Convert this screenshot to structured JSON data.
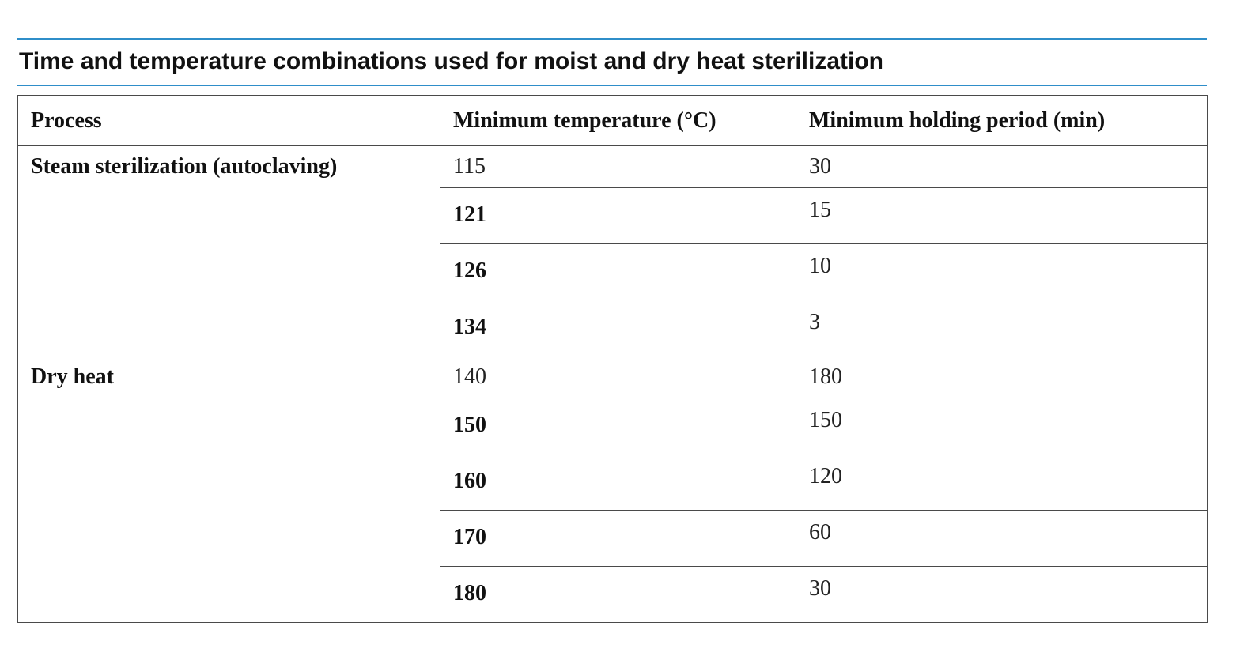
{
  "title": "Time and temperature combinations used for moist and dry heat sterilization",
  "headers": {
    "process": "Process",
    "temperature": "Minimum temperature (°C)",
    "holding": "Minimum holding period (min)"
  },
  "groups": [
    {
      "process": "Steam sterilization (autoclaving)",
      "rows": [
        {
          "temp": "115",
          "time": "30"
        },
        {
          "temp": "121",
          "time": "15"
        },
        {
          "temp": "126",
          "time": "10"
        },
        {
          "temp": "134",
          "time": "3"
        }
      ]
    },
    {
      "process": "Dry heat",
      "rows": [
        {
          "temp": "140",
          "time": "180"
        },
        {
          "temp": "150",
          "time": "150"
        },
        {
          "temp": "160",
          "time": "120"
        },
        {
          "temp": "170",
          "time": "60"
        },
        {
          "temp": "180",
          "time": "30"
        }
      ]
    }
  ]
}
